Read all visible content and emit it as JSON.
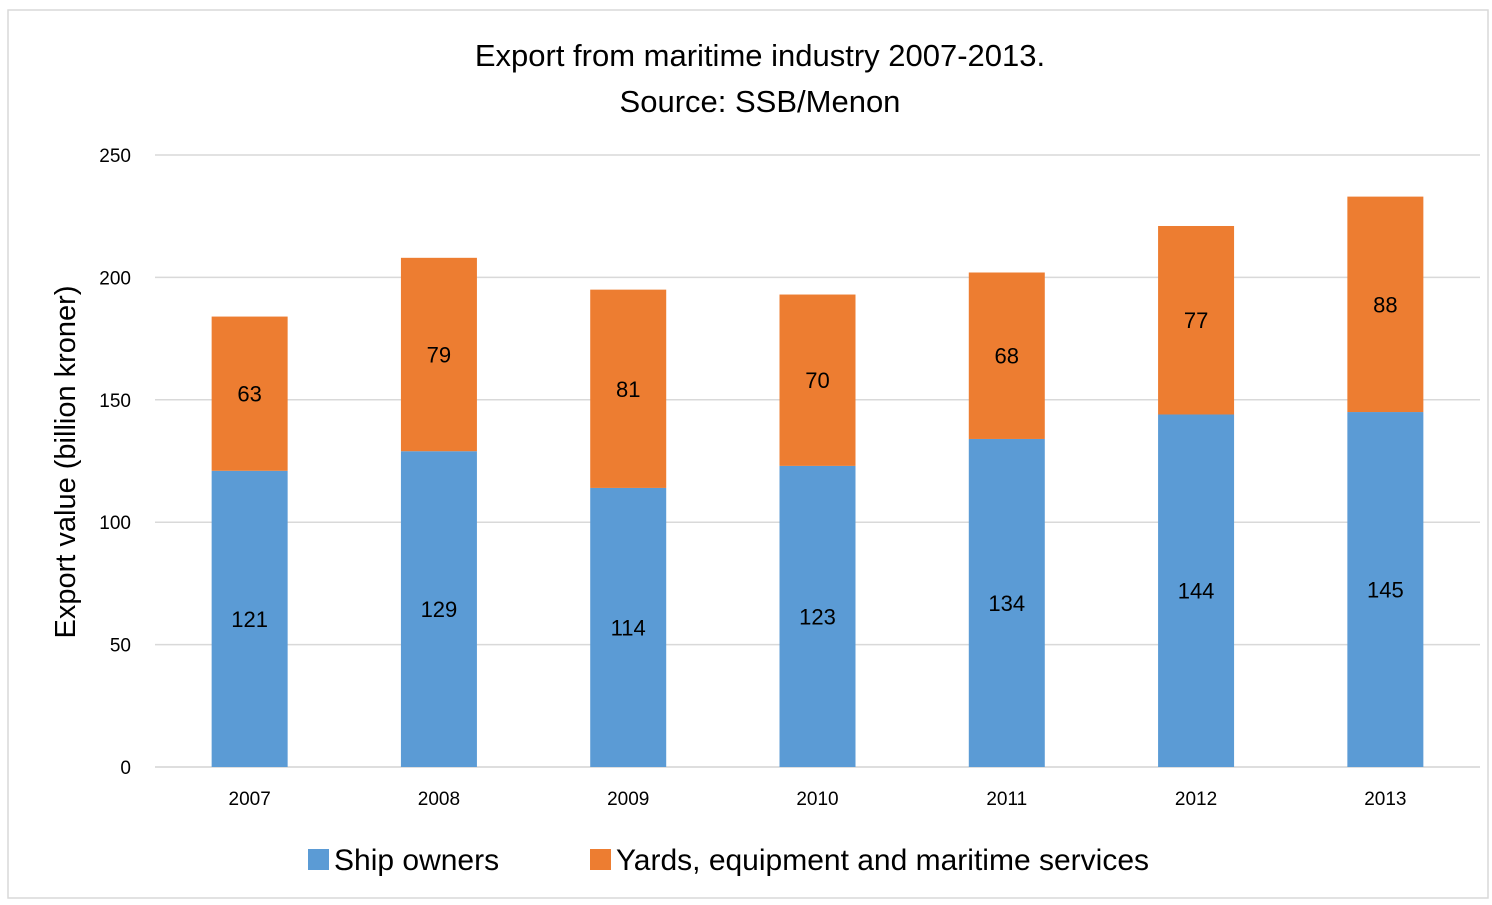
{
  "chart_data": {
    "type": "bar",
    "stacked": true,
    "title": "Export from maritime industry 2007-2013.",
    "subtitle": "Source: SSB/Menon",
    "xlabel": "",
    "ylabel": "Export value (billion  kroner)",
    "ylim": [
      0,
      250
    ],
    "yticks": [
      0,
      50,
      100,
      150,
      200,
      250
    ],
    "categories": [
      "2007",
      "2008",
      "2009",
      "2010",
      "2011",
      "2012",
      "2013"
    ],
    "series": [
      {
        "name": "Ship owners",
        "color": "#5b9bd5",
        "values": [
          121,
          129,
          114,
          123,
          134,
          144,
          145
        ]
      },
      {
        "name": "Yards, equipment and maritime services",
        "color": "#ed7d31",
        "values": [
          63,
          79,
          81,
          70,
          68,
          77,
          88
        ]
      }
    ],
    "grid": true,
    "legend": "bottom-center"
  }
}
